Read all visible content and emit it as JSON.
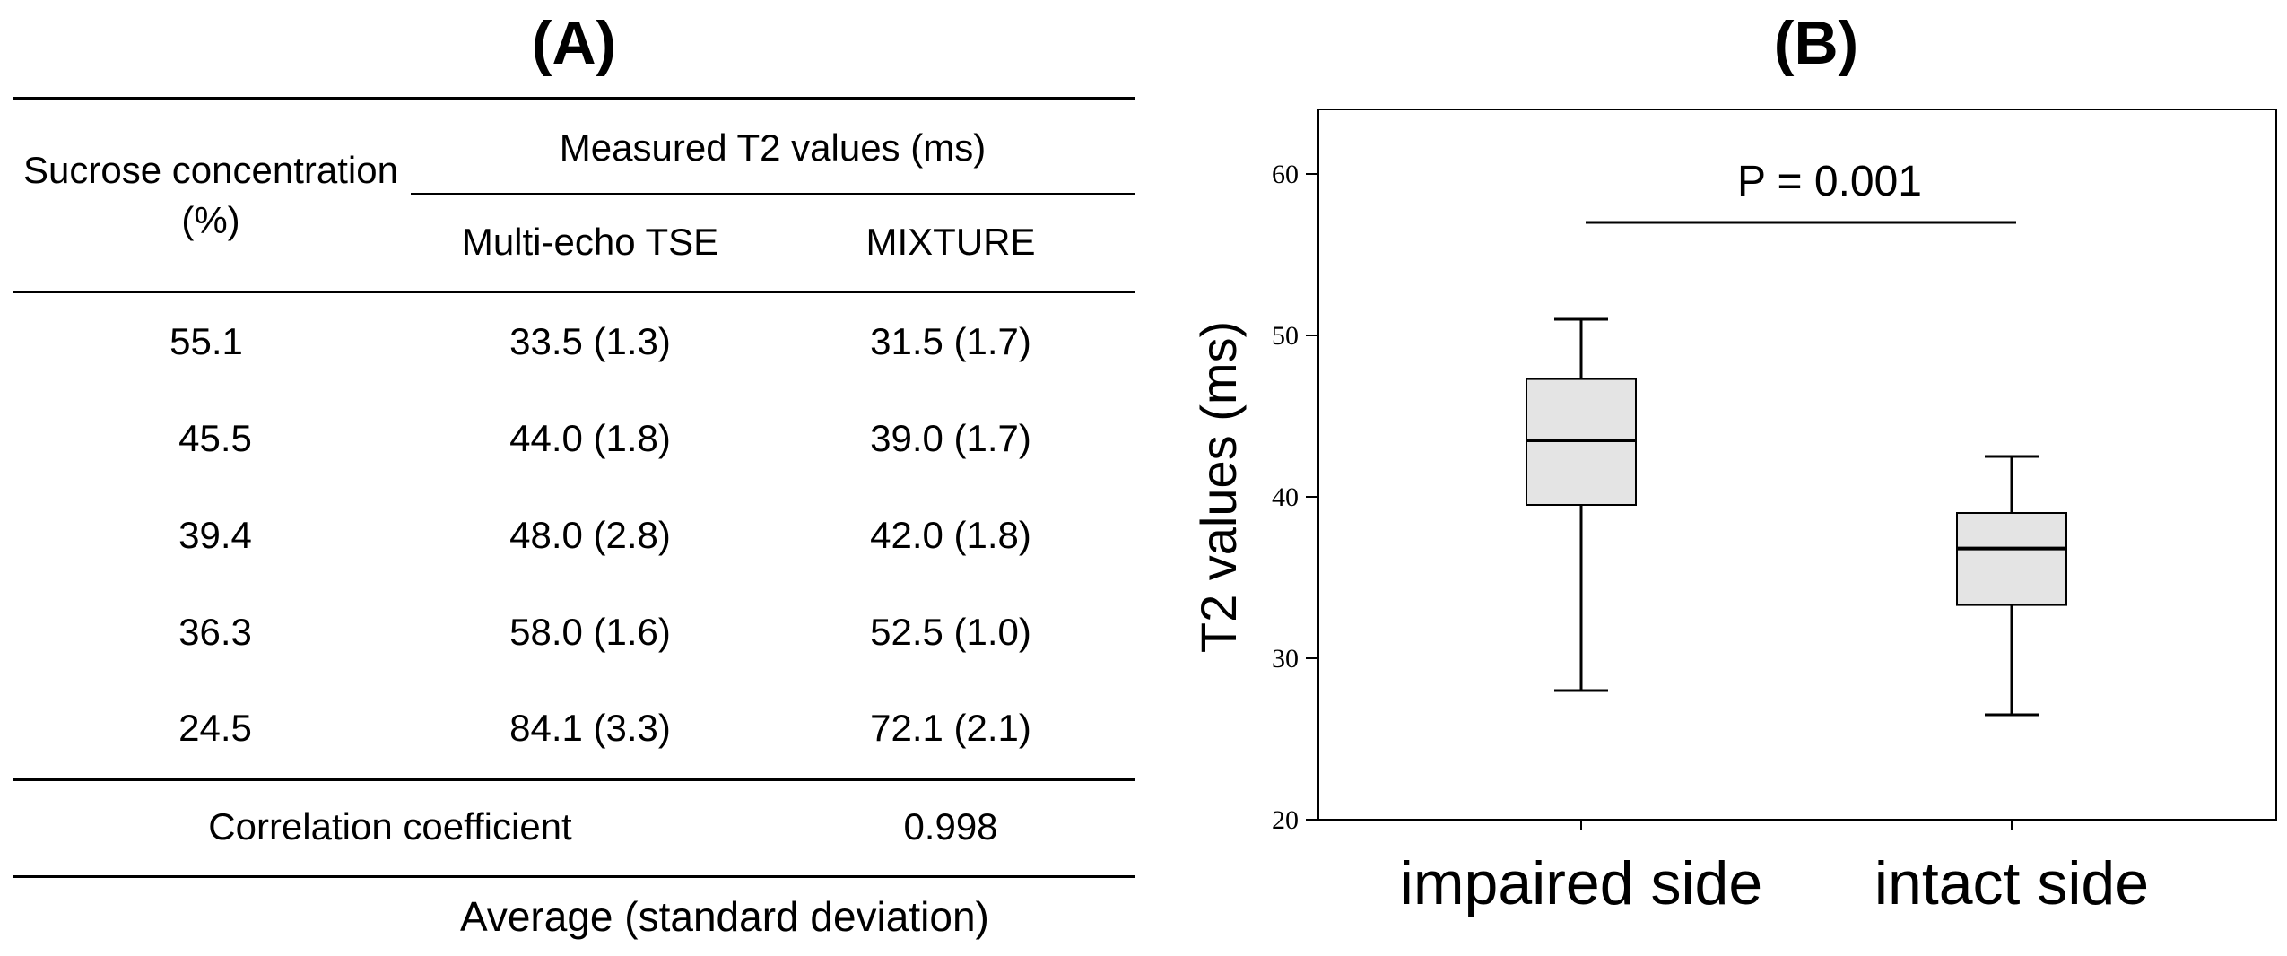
{
  "panel_a": {
    "label": "(A)",
    "header": {
      "sucrose": "Sucrose concentration (%)",
      "measured": "Measured T2 values (ms)",
      "col_tse": "Multi-echo TSE",
      "col_mixture": "MIXTURE"
    },
    "rows": [
      {
        "sucrose": "55.1",
        "tse": "33.5 (1.3)",
        "mixture": "31.5 (1.7)"
      },
      {
        "sucrose": "45.5",
        "tse": "44.0 (1.8)",
        "mixture": "39.0 (1.7)"
      },
      {
        "sucrose": "39.4",
        "tse": "48.0 (2.8)",
        "mixture": "42.0 (1.8)"
      },
      {
        "sucrose": "36.3",
        "tse": "58.0 (1.6)",
        "mixture": "52.5 (1.0)"
      },
      {
        "sucrose": "24.5",
        "tse": "84.1 (3.3)",
        "mixture": "72.1 (2.1)"
      }
    ],
    "correlation": {
      "label": "Correlation coefficient",
      "value": "0.998"
    },
    "footnote": "Average (standard deviation)"
  },
  "chart_data": {
    "type": "boxplot",
    "panel_label": "(B)",
    "ylabel": "T2 values (ms)",
    "ylim": [
      20,
      64
    ],
    "yticks": [
      20,
      30,
      40,
      50,
      60
    ],
    "categories": [
      "impaired side",
      "intact side"
    ],
    "boxes": [
      {
        "name": "impaired side",
        "min": 28.0,
        "q1": 39.5,
        "median": 43.5,
        "q3": 47.3,
        "max": 51.0
      },
      {
        "name": "intact side",
        "min": 26.5,
        "q1": 33.3,
        "median": 36.8,
        "q3": 39.0,
        "max": 42.5
      }
    ],
    "annotation": "P = 0.001",
    "box_fill": "#e4e4e4",
    "line_color": "#000000"
  }
}
